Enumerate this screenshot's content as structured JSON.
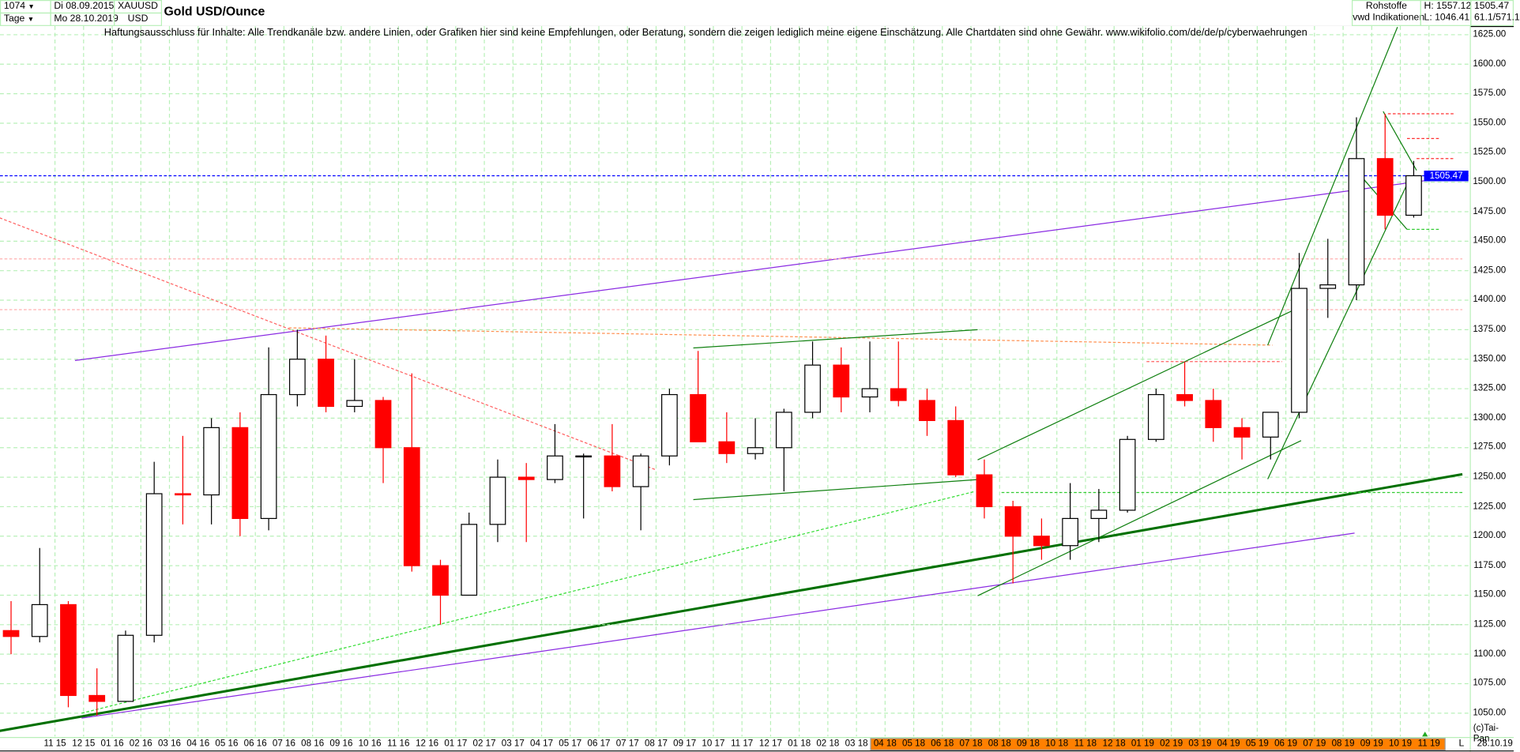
{
  "header": {
    "count": "1074",
    "period": "Tage",
    "start_date": "Di 08.09.2015",
    "end_date": "Mo 28.10.2019",
    "symbol": "XAUUSD",
    "currency": "USD",
    "title": "Gold USD/Ounce",
    "source_line1": "Rohstoffe",
    "source_line2": "vwd Indikationen",
    "high": "H: 1557.12",
    "low": "L: 1046.41",
    "last": "1505.47",
    "extra": "61.1/571.1"
  },
  "disclaimer": "Haftungsausschluss für Inhalte: Alle Trendkanäle bzw. andere Linien, oder Grafiken hier sind keine Empfehlungen, oder Beratung, sondern die zeigen lediglich meine eigene Einschätzung. Alle Chartdaten sind ohne Gewähr.  www.wikifolio.com/de/de/p/cyberwaehrungen",
  "footer": {
    "copyright": "(c)Tai-Pan",
    "scale_mode": "L",
    "last_date": "28.10.19"
  },
  "colors": {
    "up": "#000000",
    "down": "#ff0000",
    "grid": "#b8f0b8",
    "last_price": "#0000ff",
    "highlight_band": "#ff8000"
  },
  "chart_data": {
    "type": "candlestick",
    "title": "Gold USD/Ounce",
    "ylim": [
      1040,
      1632
    ],
    "yticks": [
      1050,
      1075,
      1100,
      1125,
      1150,
      1175,
      1200,
      1225,
      1250,
      1275,
      1300,
      1325,
      1350,
      1375,
      1400,
      1425,
      1450,
      1475,
      1500,
      1525,
      1550,
      1575,
      1600,
      1625
    ],
    "ytick_labels": [
      "1050.00",
      "1075.00",
      "1100.00",
      "1125.00",
      "1150.00",
      "1175.00",
      "1200.00",
      "1225.00",
      "1250.00",
      "1275.00",
      "1300.00",
      "1325.00",
      "1350.00",
      "1375.00",
      "1400.00",
      "1425.00",
      "1450.00",
      "1475.00",
      "1500.00",
      "1525.00",
      "1550.00",
      "1575.00",
      "1600.00",
      "1625.00"
    ],
    "xtick_labels": [
      "11 15",
      "12 15",
      "01 16",
      "02 16",
      "03 16",
      "04 16",
      "05 16",
      "06 16",
      "07 16",
      "08 16",
      "09 16",
      "10 16",
      "11 16",
      "12 16",
      "01 17",
      "02 17",
      "03 17",
      "04 17",
      "05 17",
      "06 17",
      "07 17",
      "08 17",
      "09 17",
      "10 17",
      "11 17",
      "12 17",
      "01 18",
      "02 18",
      "03 18",
      "04 18",
      "05 18",
      "06 18",
      "07 18",
      "08 18",
      "09 18",
      "10 18",
      "11 18",
      "12 18",
      "01 19",
      "02 19",
      "03 19",
      "04 19",
      "05 19",
      "06 19",
      "07 19",
      "08 19",
      "09 19",
      "10 19",
      "11 19"
    ],
    "highlighted_from_label": "04 18",
    "grid": true,
    "last_price": 1505.47,
    "candles": [
      [
        "2015-09",
        1120,
        1145,
        1100,
        1115
      ],
      [
        "2015-10",
        1115,
        1190,
        1110,
        1142
      ],
      [
        "2015-11",
        1142,
        1145,
        1055,
        1065
      ],
      [
        "2015-12",
        1065,
        1088,
        1048,
        1060
      ],
      [
        "2016-01",
        1060,
        1120,
        1060,
        1116
      ],
      [
        "2016-02",
        1116,
        1263,
        1110,
        1236
      ],
      [
        "2016-03",
        1236,
        1285,
        1210,
        1235
      ],
      [
        "2016-04",
        1235,
        1300,
        1210,
        1292
      ],
      [
        "2016-05",
        1292,
        1305,
        1200,
        1215
      ],
      [
        "2016-06",
        1215,
        1360,
        1205,
        1320
      ],
      [
        "2016-07",
        1320,
        1375,
        1310,
        1350
      ],
      [
        "2016-08",
        1350,
        1370,
        1305,
        1310
      ],
      [
        "2016-09",
        1310,
        1350,
        1305,
        1315
      ],
      [
        "2016-10",
        1315,
        1318,
        1245,
        1275
      ],
      [
        "2016-11",
        1275,
        1338,
        1170,
        1175
      ],
      [
        "2016-12",
        1175,
        1180,
        1125,
        1150
      ],
      [
        "2017-01",
        1150,
        1220,
        1150,
        1210
      ],
      [
        "2017-02",
        1210,
        1265,
        1195,
        1250
      ],
      [
        "2017-03",
        1250,
        1262,
        1195,
        1248
      ],
      [
        "2017-04",
        1248,
        1295,
        1245,
        1268
      ],
      [
        "2017-05",
        1268,
        1270,
        1215,
        1268
      ],
      [
        "2017-06",
        1268,
        1295,
        1238,
        1242
      ],
      [
        "2017-07",
        1242,
        1270,
        1205,
        1268
      ],
      [
        "2017-08",
        1268,
        1325,
        1260,
        1320
      ],
      [
        "2017-09",
        1320,
        1357,
        1280,
        1280
      ],
      [
        "2017-10",
        1280,
        1305,
        1262,
        1270
      ],
      [
        "2017-11",
        1270,
        1300,
        1265,
        1275
      ],
      [
        "2017-12",
        1275,
        1308,
        1238,
        1305
      ],
      [
        "2018-01",
        1305,
        1365,
        1300,
        1345
      ],
      [
        "2018-02",
        1345,
        1360,
        1305,
        1318
      ],
      [
        "2018-03",
        1318,
        1365,
        1305,
        1325
      ],
      [
        "2018-04",
        1325,
        1365,
        1310,
        1315
      ],
      [
        "2018-05",
        1315,
        1325,
        1285,
        1298
      ],
      [
        "2018-06",
        1298,
        1310,
        1250,
        1252
      ],
      [
        "2018-07",
        1252,
        1265,
        1215,
        1225
      ],
      [
        "2018-08",
        1225,
        1230,
        1160,
        1200
      ],
      [
        "2018-09",
        1200,
        1215,
        1180,
        1192
      ],
      [
        "2018-10",
        1192,
        1245,
        1180,
        1215
      ],
      [
        "2018-11",
        1215,
        1240,
        1195,
        1222
      ],
      [
        "2018-12",
        1222,
        1285,
        1220,
        1282
      ],
      [
        "2019-01",
        1282,
        1325,
        1280,
        1320
      ],
      [
        "2019-02",
        1320,
        1348,
        1310,
        1315
      ],
      [
        "2019-03",
        1315,
        1325,
        1280,
        1292
      ],
      [
        "2019-04",
        1292,
        1300,
        1265,
        1284
      ],
      [
        "2019-05",
        1284,
        1305,
        1265,
        1305
      ],
      [
        "2019-06",
        1305,
        1440,
        1300,
        1410
      ],
      [
        "2019-07",
        1410,
        1452,
        1385,
        1413
      ],
      [
        "2019-08",
        1413,
        1555,
        1400,
        1520
      ],
      [
        "2019-09",
        1520,
        1558,
        1460,
        1472
      ],
      [
        "2019-10",
        1472,
        1518,
        1470,
        1505.47
      ]
    ],
    "trendlines": [
      {
        "from": [
          "2015-11-22",
          1348.9
        ],
        "to": [
          "2019-12-06",
          1505.5
        ],
        "color": "#8a2be2",
        "style": "solid"
      },
      {
        "from": [
          "2015-11-29",
          1045.8
        ],
        "to": [
          "2019-08-13",
          1202.6
        ],
        "color": "#8a2be2",
        "style": "solid"
      },
      {
        "from": [
          "2015-09-03",
          1035
        ],
        "to": [
          "2019-12-06",
          1252.5
        ],
        "color": "#007000",
        "style": "thick"
      },
      {
        "from": [
          "2015-11-29",
          1050
        ],
        "to": [
          "2018-07-04",
          1237.7
        ],
        "color": "#33dd33",
        "style": "dotted"
      },
      {
        "from": [
          "2015-09-03",
          1469.8
        ],
        "to": [
          "2017-07-30",
          1256.5
        ],
        "color": "#ff6060",
        "style": "dotted"
      },
      {
        "from": [
          "2016-07-06",
          1376.6
        ],
        "to": [
          "2019-05-17",
          1361.9
        ],
        "color": "#ff9050",
        "style": "dotted"
      },
      {
        "from": [
          "2015-09-03",
          1435
        ],
        "to": [
          "2019-12-06",
          1435
        ],
        "color": "#ffb0b0",
        "style": "dotted"
      },
      {
        "from": [
          "2015-09-03",
          1392
        ],
        "to": [
          "2019-12-06",
          1392
        ],
        "color": "#ffb0b0",
        "style": "dotted"
      },
      {
        "from": [
          "2019-01-05",
          1348
        ],
        "to": [
          "2019-05-27",
          1348
        ],
        "color": "#ff6060",
        "style": "dotted"
      },
      {
        "from": [
          "2019-09-18",
          1558
        ],
        "to": [
          "2019-11-28",
          1558
        ],
        "color": "#ff3030",
        "style": "dotted"
      },
      {
        "from": [
          "2019-10-08",
          1537
        ],
        "to": [
          "2019-11-13",
          1537
        ],
        "color": "#ff3030",
        "style": "dotted"
      },
      {
        "from": [
          "2019-10-18",
          1520
        ],
        "to": [
          "2019-11-28",
          1520
        ],
        "color": "#ff3030",
        "style": "dotted"
      },
      {
        "from": [
          "2017-01-13",
          1125
        ],
        "to": [
          "2019-12-06",
          1125
        ],
        "color": "#a8e0a8",
        "style": "dotted"
      },
      {
        "from": [
          "2018-08-03",
          1237
        ],
        "to": [
          "2019-12-06",
          1237
        ],
        "color": "#33cc33",
        "style": "dotted"
      },
      {
        "from": [
          "2019-10-08",
          1460
        ],
        "to": [
          "2019-11-13",
          1460
        ],
        "color": "#33cc33",
        "style": "dotted"
      },
      {
        "from": [
          "2017-09-10",
          1359.5
        ],
        "to": [
          "2018-07-08",
          1375
        ],
        "color": "#108010",
        "style": "solid"
      },
      {
        "from": [
          "2017-09-10",
          1231
        ],
        "to": [
          "2018-07-08",
          1248
        ],
        "color": "#108010",
        "style": "solid"
      },
      {
        "from": [
          "2018-07-08",
          1149.5
        ],
        "to": [
          "2019-06-17",
          1281
        ],
        "color": "#108010",
        "style": "solid"
      },
      {
        "from": [
          "2018-07-08",
          1264.7
        ],
        "to": [
          "2019-06-17",
          1394.6
        ],
        "color": "#108010",
        "style": "solid"
      },
      {
        "from": [
          "2019-05-12",
          1248.4
        ],
        "to": [
          "2019-10-11",
          1503.3
        ],
        "color": "#108010",
        "style": "solid"
      },
      {
        "from": [
          "2019-05-12",
          1361.9
        ],
        "to": [
          "2019-09-28",
          1631.5
        ],
        "color": "#108010",
        "style": "solid"
      },
      {
        "from": [
          "2019-09-13",
          1560
        ],
        "to": [
          "2019-10-18",
          1510
        ],
        "color": "#108010",
        "style": "solid"
      },
      {
        "from": [
          "2019-08-20",
          1505
        ],
        "to": [
          "2019-10-08",
          1460
        ],
        "color": "#108010",
        "style": "solid"
      }
    ]
  }
}
